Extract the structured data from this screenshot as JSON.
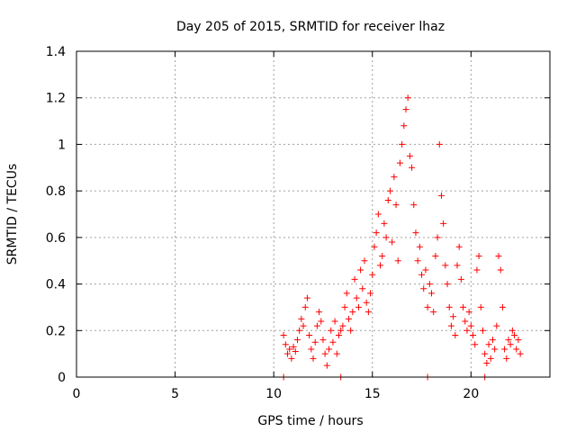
{
  "chart_data": {
    "type": "scatter",
    "title": "Day 205 of 2015, SRMTID for receiver lhaz",
    "xlabel": "GPS time / hours",
    "ylabel": "SRMTID / TECUs",
    "xlim": [
      0,
      24
    ],
    "ylim": [
      0,
      1.4
    ],
    "xticks": [
      0,
      5,
      10,
      15,
      20
    ],
    "yticks": [
      0,
      0.2,
      0.4,
      0.6,
      0.8,
      1,
      1.2,
      1.4
    ],
    "xtick_labels": [
      "0",
      "5",
      "10",
      "15",
      "20"
    ],
    "ytick_labels": [
      "0",
      "0.2",
      "0.4",
      "0.6",
      "0.8",
      "1",
      "1.2",
      "1.4"
    ],
    "grid": true,
    "marker": "+",
    "marker_color": "#ff0000",
    "series": [
      {
        "name": "SRMTID",
        "points": [
          [
            10.5,
            0.0
          ],
          [
            13.4,
            0.0
          ],
          [
            17.8,
            0.0
          ],
          [
            20.7,
            0.0
          ],
          [
            10.5,
            0.18
          ],
          [
            10.6,
            0.14
          ],
          [
            10.7,
            0.1
          ],
          [
            10.8,
            0.12
          ],
          [
            10.9,
            0.08
          ],
          [
            11.0,
            0.13
          ],
          [
            11.1,
            0.11
          ],
          [
            11.2,
            0.16
          ],
          [
            11.3,
            0.2
          ],
          [
            11.4,
            0.25
          ],
          [
            11.5,
            0.22
          ],
          [
            11.6,
            0.3
          ],
          [
            11.7,
            0.34
          ],
          [
            11.8,
            0.18
          ],
          [
            11.9,
            0.12
          ],
          [
            12.0,
            0.08
          ],
          [
            12.1,
            0.15
          ],
          [
            12.2,
            0.22
          ],
          [
            12.3,
            0.28
          ],
          [
            12.4,
            0.24
          ],
          [
            12.5,
            0.16
          ],
          [
            12.6,
            0.1
          ],
          [
            12.7,
            0.05
          ],
          [
            12.8,
            0.12
          ],
          [
            12.9,
            0.2
          ],
          [
            13.0,
            0.15
          ],
          [
            13.1,
            0.24
          ],
          [
            13.2,
            0.1
          ],
          [
            13.3,
            0.18
          ],
          [
            13.4,
            0.2
          ],
          [
            13.5,
            0.22
          ],
          [
            13.6,
            0.3
          ],
          [
            13.7,
            0.36
          ],
          [
            13.8,
            0.25
          ],
          [
            13.9,
            0.2
          ],
          [
            14.0,
            0.28
          ],
          [
            14.1,
            0.42
          ],
          [
            14.2,
            0.34
          ],
          [
            14.3,
            0.3
          ],
          [
            14.4,
            0.46
          ],
          [
            14.5,
            0.38
          ],
          [
            14.6,
            0.5
          ],
          [
            14.7,
            0.32
          ],
          [
            14.8,
            0.28
          ],
          [
            14.9,
            0.36
          ],
          [
            15.0,
            0.44
          ],
          [
            15.1,
            0.56
          ],
          [
            15.2,
            0.62
          ],
          [
            15.3,
            0.7
          ],
          [
            15.4,
            0.48
          ],
          [
            15.5,
            0.52
          ],
          [
            15.6,
            0.66
          ],
          [
            15.7,
            0.6
          ],
          [
            15.8,
            0.76
          ],
          [
            15.9,
            0.8
          ],
          [
            16.0,
            0.58
          ],
          [
            16.1,
            0.86
          ],
          [
            16.2,
            0.74
          ],
          [
            16.3,
            0.5
          ],
          [
            16.4,
            0.92
          ],
          [
            16.5,
            1.0
          ],
          [
            16.6,
            1.08
          ],
          [
            16.7,
            1.15
          ],
          [
            16.8,
            1.2
          ],
          [
            16.9,
            0.95
          ],
          [
            17.0,
            0.9
          ],
          [
            17.1,
            0.74
          ],
          [
            17.2,
            0.62
          ],
          [
            17.3,
            0.5
          ],
          [
            17.4,
            0.56
          ],
          [
            17.5,
            0.44
          ],
          [
            17.6,
            0.38
          ],
          [
            17.7,
            0.46
          ],
          [
            17.8,
            0.3
          ],
          [
            17.9,
            0.4
          ],
          [
            18.0,
            0.36
          ],
          [
            18.1,
            0.28
          ],
          [
            18.2,
            0.52
          ],
          [
            18.3,
            0.6
          ],
          [
            18.4,
            1.0
          ],
          [
            18.5,
            0.78
          ],
          [
            18.6,
            0.66
          ],
          [
            18.7,
            0.48
          ],
          [
            18.8,
            0.4
          ],
          [
            18.9,
            0.3
          ],
          [
            19.0,
            0.22
          ],
          [
            19.1,
            0.26
          ],
          [
            19.2,
            0.18
          ],
          [
            19.3,
            0.48
          ],
          [
            19.4,
            0.56
          ],
          [
            19.5,
            0.42
          ],
          [
            19.6,
            0.3
          ],
          [
            19.7,
            0.24
          ],
          [
            19.8,
            0.2
          ],
          [
            19.9,
            0.28
          ],
          [
            20.0,
            0.22
          ],
          [
            20.1,
            0.18
          ],
          [
            20.2,
            0.14
          ],
          [
            20.3,
            0.46
          ],
          [
            20.4,
            0.52
          ],
          [
            20.5,
            0.3
          ],
          [
            20.6,
            0.2
          ],
          [
            20.7,
            0.1
          ],
          [
            20.8,
            0.06
          ],
          [
            20.9,
            0.14
          ],
          [
            21.0,
            0.08
          ],
          [
            21.1,
            0.16
          ],
          [
            21.2,
            0.12
          ],
          [
            21.3,
            0.22
          ],
          [
            21.4,
            0.52
          ],
          [
            21.5,
            0.46
          ],
          [
            21.6,
            0.3
          ],
          [
            21.7,
            0.12
          ],
          [
            21.8,
            0.08
          ],
          [
            21.9,
            0.16
          ],
          [
            22.0,
            0.14
          ],
          [
            22.1,
            0.2
          ],
          [
            22.2,
            0.18
          ],
          [
            22.3,
            0.12
          ],
          [
            22.4,
            0.16
          ],
          [
            22.5,
            0.1
          ]
        ]
      }
    ]
  }
}
